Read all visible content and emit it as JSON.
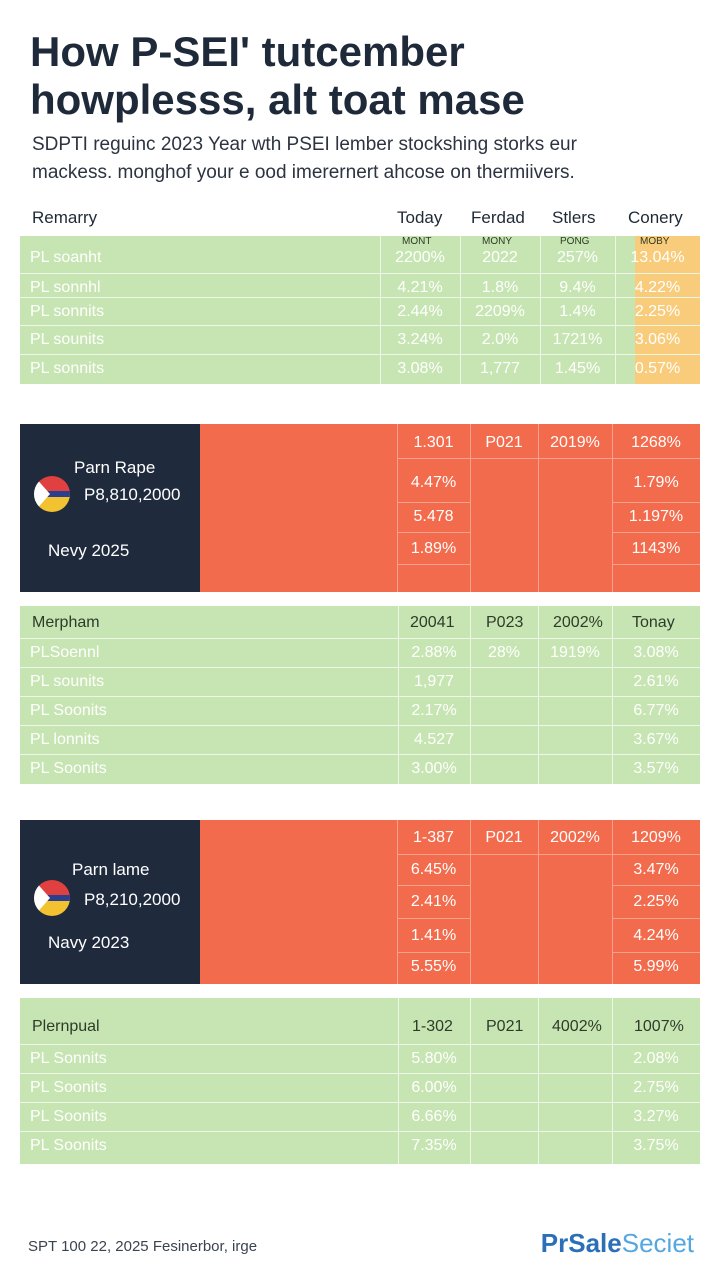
{
  "title": {
    "line1": "How P-SEI' tutcember",
    "line2": "howplesss, alt toat mase"
  },
  "subtitle": {
    "line1": "SDPTI reguinc 2023 Year wth PSEI lember stockshing storks eur",
    "line2": "mackess. monghof your e ood imerernert ahcose on thermiivers."
  },
  "table1": {
    "headers": [
      "Remarry",
      "Today",
      "Ferdad",
      "Stlers",
      "Conery"
    ],
    "subheaders": [
      "MONT",
      "MONY",
      "PONG",
      "MOBY"
    ],
    "rows": [
      {
        "label": "PL soanht",
        "c1": "2200%",
        "c2": "2022",
        "c3": "257%",
        "c4": "13.04%"
      },
      {
        "label": "PL sonnhl",
        "c1": "4.21%",
        "c2": "1.8%",
        "c3": "9.4%",
        "c4": "4.22%"
      },
      {
        "label": "PL sonnits",
        "c1": "2.44%",
        "c2": "2209%",
        "c3": "1.4%",
        "c4": "2.25%"
      },
      {
        "label": "PL sounits",
        "c1": "3.24%",
        "c2": "2.0%",
        "c3": "1721%",
        "c4": "3.06%"
      },
      {
        "label": "PL sonnits",
        "c1": "3.08%",
        "c2": "1,777",
        "c3": "1.45%",
        "c4": "0.57%"
      }
    ]
  },
  "card1": {
    "name": "Parn Rape",
    "value": "P8,810,2000",
    "date": "Nevy 2025",
    "header": [
      "1.301",
      "P021",
      "2019%",
      "1268%"
    ],
    "col1": [
      "4.47%",
      "5.478",
      "1.89%"
    ],
    "col4": [
      "1.79%",
      "1.197%",
      "1143%"
    ]
  },
  "table2": {
    "header": {
      "label": "Merpham",
      "c1": "20041",
      "c2": "P023",
      "c3": "2002%",
      "c4": "Tonay"
    },
    "rows": [
      {
        "label": "PLSoennl",
        "c1": "2.88%",
        "c2": "28%",
        "c3": "1919%",
        "c4": "3.08%"
      },
      {
        "label": "PL sounits",
        "c1": "1,977",
        "c2": "",
        "c3": "",
        "c4": "2.61%"
      },
      {
        "label": "PL Soonits",
        "c1": "2.17%",
        "c2": "",
        "c3": "",
        "c4": "6.77%"
      },
      {
        "label": "PL lonnits",
        "c1": "4.527",
        "c2": "",
        "c3": "",
        "c4": "3.67%"
      },
      {
        "label": "PL Soonits",
        "c1": "3.00%",
        "c2": "",
        "c3": "",
        "c4": "3.57%"
      }
    ]
  },
  "card2": {
    "name": "Parn lame",
    "value": "P8,210,2000",
    "date": "Navy 2023",
    "header": [
      "1-387",
      "P021",
      "2002%",
      "1209%"
    ],
    "col1": [
      "6.45%",
      "2.41%",
      "1.41%",
      "5.55%"
    ],
    "col4": [
      "3.47%",
      "2.25%",
      "4.24%",
      "5.99%"
    ]
  },
  "table3": {
    "header": {
      "label": "Plernpual",
      "c1": "1-302",
      "c2": "P021",
      "c3": "4002%",
      "c4": "1007%"
    },
    "rows": [
      {
        "label": "PL Sonnits",
        "c1": "5.80%",
        "c4": "2.08%"
      },
      {
        "label": "PL Soonits",
        "c1": "6.00%",
        "c4": "2.75%"
      },
      {
        "label": "PL Soonits",
        "c1": "6.66%",
        "c4": "3.27%"
      },
      {
        "label": "PL Soonits",
        "c1": "7.35%",
        "c4": "3.75%"
      }
    ]
  },
  "footer": {
    "note": "SPT 100 22, 2025 Fesinerbor, irge",
    "brand_a": "PrSale",
    "brand_b": "Seciet"
  }
}
